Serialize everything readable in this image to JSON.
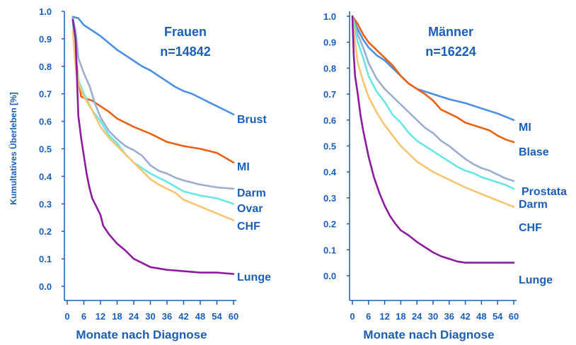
{
  "chart_data": [
    {
      "type": "line",
      "title": "Frauen",
      "subtitle": "n=14842",
      "ylabel": "Kumultatives Überleben [%]",
      "xlabel": "Monate nach Diagnose",
      "x_ticks": [
        "0",
        "6",
        "12",
        "18",
        "24",
        "30",
        "36",
        "42",
        "48",
        "54",
        "60"
      ],
      "y_ticks": [
        "0.0",
        "0.1",
        "0.2",
        "0.3",
        "0.4",
        "0.5",
        "0.6",
        "0.7",
        "0.8",
        "0.9",
        "1.0"
      ],
      "xlim": [
        0,
        60
      ],
      "ylim": [
        0,
        1
      ],
      "grid": false,
      "series": [
        {
          "name": "Brust",
          "color": "#4a90e2",
          "points": [
            [
              2,
              0.98
            ],
            [
              4,
              0.975
            ],
            [
              6,
              0.95
            ],
            [
              9,
              0.93
            ],
            [
              12,
              0.91
            ],
            [
              15,
              0.885
            ],
            [
              18,
              0.86
            ],
            [
              21,
              0.84
            ],
            [
              24,
              0.82
            ],
            [
              27,
              0.8
            ],
            [
              30,
              0.785
            ],
            [
              33,
              0.765
            ],
            [
              36,
              0.745
            ],
            [
              39,
              0.725
            ],
            [
              42,
              0.71
            ],
            [
              45,
              0.7
            ],
            [
              48,
              0.685
            ],
            [
              51,
              0.67
            ],
            [
              54,
              0.655
            ],
            [
              57,
              0.64
            ],
            [
              60,
              0.625
            ]
          ]
        },
        {
          "name": "MI",
          "color": "#e8620f",
          "points": [
            [
              2,
              0.97
            ],
            [
              3,
              0.85
            ],
            [
              4,
              0.75
            ],
            [
              5,
              0.69
            ],
            [
              6,
              0.685
            ],
            [
              9,
              0.675
            ],
            [
              12,
              0.655
            ],
            [
              15,
              0.635
            ],
            [
              18,
              0.61
            ],
            [
              24,
              0.58
            ],
            [
              30,
              0.555
            ],
            [
              36,
              0.525
            ],
            [
              42,
              0.51
            ],
            [
              48,
              0.5
            ],
            [
              54,
              0.485
            ],
            [
              60,
              0.45
            ]
          ]
        },
        {
          "name": "Darm",
          "color": "#9aaed0",
          "points": [
            [
              2,
              0.975
            ],
            [
              3,
              0.93
            ],
            [
              4,
              0.83
            ],
            [
              6,
              0.775
            ],
            [
              8,
              0.73
            ],
            [
              10,
              0.665
            ],
            [
              12,
              0.615
            ],
            [
              15,
              0.565
            ],
            [
              18,
              0.535
            ],
            [
              21,
              0.51
            ],
            [
              24,
              0.495
            ],
            [
              27,
              0.475
            ],
            [
              30,
              0.44
            ],
            [
              33,
              0.42
            ],
            [
              36,
              0.41
            ],
            [
              39,
              0.395
            ],
            [
              42,
              0.385
            ],
            [
              48,
              0.37
            ],
            [
              54,
              0.36
            ],
            [
              60,
              0.355
            ]
          ]
        },
        {
          "name": "Ovar",
          "color": "#66e6e6",
          "points": [
            [
              2,
              0.97
            ],
            [
              3,
              0.82
            ],
            [
              4,
              0.75
            ],
            [
              6,
              0.7
            ],
            [
              9,
              0.64
            ],
            [
              12,
              0.6
            ],
            [
              15,
              0.55
            ],
            [
              18,
              0.52
            ],
            [
              21,
              0.48
            ],
            [
              24,
              0.45
            ],
            [
              30,
              0.41
            ],
            [
              36,
              0.38
            ],
            [
              42,
              0.345
            ],
            [
              48,
              0.33
            ],
            [
              54,
              0.32
            ],
            [
              60,
              0.3
            ]
          ]
        },
        {
          "name": "CHF",
          "color": "#f8c470",
          "points": [
            [
              2,
              0.93
            ],
            [
              3,
              0.8
            ],
            [
              4,
              0.74
            ],
            [
              6,
              0.69
            ],
            [
              9,
              0.64
            ],
            [
              12,
              0.58
            ],
            [
              15,
              0.54
            ],
            [
              18,
              0.51
            ],
            [
              21,
              0.48
            ],
            [
              24,
              0.45
            ],
            [
              27,
              0.42
            ],
            [
              30,
              0.39
            ],
            [
              33,
              0.37
            ],
            [
              36,
              0.355
            ],
            [
              39,
              0.34
            ],
            [
              42,
              0.315
            ],
            [
              48,
              0.29
            ],
            [
              54,
              0.265
            ],
            [
              60,
              0.24
            ]
          ]
        },
        {
          "name": "Lunge",
          "color": "#8e1a9e",
          "points": [
            [
              2,
              0.97
            ],
            [
              3,
              0.9
            ],
            [
              4,
              0.62
            ],
            [
              5,
              0.54
            ],
            [
              6,
              0.475
            ],
            [
              7,
              0.41
            ],
            [
              8,
              0.36
            ],
            [
              9,
              0.32
            ],
            [
              10,
              0.3
            ],
            [
              12,
              0.26
            ],
            [
              13,
              0.22
            ],
            [
              15,
              0.19
            ],
            [
              18,
              0.155
            ],
            [
              21,
              0.13
            ],
            [
              24,
              0.1
            ],
            [
              27,
              0.085
            ],
            [
              30,
              0.07
            ],
            [
              36,
              0.06
            ],
            [
              42,
              0.055
            ],
            [
              48,
              0.05
            ],
            [
              54,
              0.05
            ],
            [
              60,
              0.045
            ]
          ]
        }
      ]
    },
    {
      "type": "line",
      "title": "Männer",
      "subtitle": "n=16224",
      "xlabel": "Monate nach Diagnose",
      "x_ticks": [
        "0",
        "6",
        "12",
        "18",
        "24",
        "30",
        "36",
        "42",
        "48",
        "54",
        "60"
      ],
      "y_ticks": [
        "0.0",
        "0.1",
        "0.2",
        "0.3",
        "0.4",
        "0.5",
        "0.6",
        "0.7",
        "0.8",
        "0.9",
        "1.0"
      ],
      "xlim": [
        0,
        60
      ],
      "ylim": [
        0,
        1
      ],
      "grid": false,
      "series": [
        {
          "name": "MI",
          "color": "#4a90e2",
          "points": [
            [
              0,
              1.0
            ],
            [
              2,
              0.95
            ],
            [
              4,
              0.91
            ],
            [
              6,
              0.88
            ],
            [
              9,
              0.85
            ],
            [
              12,
              0.83
            ],
            [
              15,
              0.8
            ],
            [
              18,
              0.77
            ],
            [
              21,
              0.74
            ],
            [
              24,
              0.72
            ],
            [
              30,
              0.7
            ],
            [
              36,
              0.68
            ],
            [
              42,
              0.665
            ],
            [
              48,
              0.645
            ],
            [
              54,
              0.625
            ],
            [
              60,
              0.6
            ]
          ]
        },
        {
          "name": "Blase",
          "color": "#e8620f",
          "points": [
            [
              0,
              1.0
            ],
            [
              2,
              0.97
            ],
            [
              4,
              0.93
            ],
            [
              6,
              0.9
            ],
            [
              9,
              0.87
            ],
            [
              12,
              0.84
            ],
            [
              15,
              0.81
            ],
            [
              18,
              0.77
            ],
            [
              21,
              0.74
            ],
            [
              24,
              0.72
            ],
            [
              27,
              0.7
            ],
            [
              30,
              0.675
            ],
            [
              33,
              0.64
            ],
            [
              36,
              0.625
            ],
            [
              39,
              0.61
            ],
            [
              42,
              0.59
            ],
            [
              48,
              0.57
            ],
            [
              51,
              0.56
            ],
            [
              54,
              0.54
            ],
            [
              57,
              0.525
            ],
            [
              60,
              0.515
            ]
          ]
        },
        {
          "name": "Prostata",
          "color": "#9aaed0",
          "points": [
            [
              0,
              1.0
            ],
            [
              2,
              0.93
            ],
            [
              4,
              0.88
            ],
            [
              6,
              0.82
            ],
            [
              9,
              0.76
            ],
            [
              12,
              0.72
            ],
            [
              15,
              0.69
            ],
            [
              18,
              0.66
            ],
            [
              21,
              0.63
            ],
            [
              24,
              0.6
            ],
            [
              27,
              0.57
            ],
            [
              30,
              0.55
            ],
            [
              33,
              0.52
            ],
            [
              36,
              0.5
            ],
            [
              39,
              0.475
            ],
            [
              42,
              0.45
            ],
            [
              45,
              0.43
            ],
            [
              48,
              0.415
            ],
            [
              51,
              0.405
            ],
            [
              54,
              0.39
            ],
            [
              57,
              0.375
            ],
            [
              60,
              0.365
            ]
          ]
        },
        {
          "name": "Darm",
          "color": "#66e6e6",
          "points": [
            [
              0,
              1.0
            ],
            [
              2,
              0.9
            ],
            [
              4,
              0.84
            ],
            [
              6,
              0.77
            ],
            [
              9,
              0.71
            ],
            [
              12,
              0.67
            ],
            [
              15,
              0.62
            ],
            [
              18,
              0.59
            ],
            [
              21,
              0.55
            ],
            [
              24,
              0.52
            ],
            [
              27,
              0.5
            ],
            [
              30,
              0.48
            ],
            [
              33,
              0.46
            ],
            [
              36,
              0.44
            ],
            [
              39,
              0.42
            ],
            [
              42,
              0.405
            ],
            [
              45,
              0.395
            ],
            [
              48,
              0.38
            ],
            [
              51,
              0.37
            ],
            [
              54,
              0.36
            ],
            [
              57,
              0.35
            ],
            [
              60,
              0.335
            ]
          ]
        },
        {
          "name": "CHF",
          "color": "#f8c470",
          "points": [
            [
              0,
              1.0
            ],
            [
              1,
              0.9
            ],
            [
              2,
              0.82
            ],
            [
              4,
              0.75
            ],
            [
              6,
              0.69
            ],
            [
              9,
              0.63
            ],
            [
              12,
              0.58
            ],
            [
              15,
              0.54
            ],
            [
              18,
              0.5
            ],
            [
              21,
              0.47
            ],
            [
              24,
              0.44
            ],
            [
              27,
              0.42
            ],
            [
              30,
              0.4
            ],
            [
              33,
              0.385
            ],
            [
              36,
              0.37
            ],
            [
              42,
              0.34
            ],
            [
              48,
              0.315
            ],
            [
              54,
              0.29
            ],
            [
              60,
              0.265
            ]
          ]
        },
        {
          "name": "Lunge",
          "color": "#8e1a9e",
          "points": [
            [
              0,
              1.0
            ],
            [
              0.5,
              0.85
            ],
            [
              1,
              0.77
            ],
            [
              2,
              0.7
            ],
            [
              3,
              0.62
            ],
            [
              4,
              0.56
            ],
            [
              5,
              0.51
            ],
            [
              6,
              0.46
            ],
            [
              8,
              0.38
            ],
            [
              10,
              0.32
            ],
            [
              12,
              0.27
            ],
            [
              14,
              0.23
            ],
            [
              16,
              0.2
            ],
            [
              18,
              0.175
            ],
            [
              21,
              0.155
            ],
            [
              24,
              0.13
            ],
            [
              27,
              0.11
            ],
            [
              30,
              0.09
            ],
            [
              33,
              0.075
            ],
            [
              36,
              0.065
            ],
            [
              39,
              0.055
            ],
            [
              42,
              0.05
            ],
            [
              48,
              0.05
            ],
            [
              54,
              0.05
            ],
            [
              60,
              0.05
            ]
          ]
        }
      ]
    }
  ]
}
